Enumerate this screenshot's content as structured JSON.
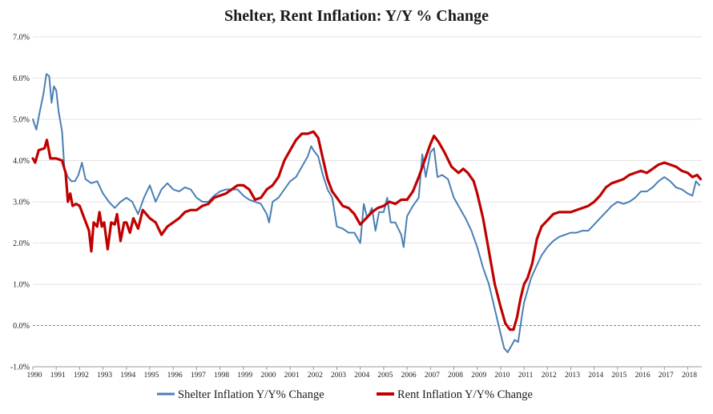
{
  "chart_data": {
    "type": "line",
    "title": "Shelter, Rent Inflation: Y/Y % Change",
    "xlabel": "",
    "ylabel": "",
    "xlim": [
      1990,
      2018.6
    ],
    "ylim": [
      -1.0,
      7.0
    ],
    "y_ticks": [
      7.0,
      6.0,
      5.0,
      4.0,
      3.0,
      2.0,
      1.0,
      0.0,
      -1.0
    ],
    "y_tick_labels": [
      "7.0%",
      "6.0%",
      "5.0%",
      "4.0%",
      "3.0%",
      "2.0%",
      "1.0%",
      "0.0%",
      "-1.0%"
    ],
    "x_ticks": [
      1990,
      1991,
      1992,
      1993,
      1994,
      1995,
      1996,
      1997,
      1998,
      1999,
      2000,
      2001,
      2002,
      2003,
      2004,
      2005,
      2006,
      2007,
      2008,
      2009,
      2010,
      2011,
      2012,
      2013,
      2014,
      2015,
      2016,
      2017,
      2018
    ],
    "x_tick_labels": [
      "1990",
      "1991",
      "1992",
      "1993",
      "1994",
      "1995",
      "1996",
      "1997",
      "1998",
      "1999",
      "2000",
      "2001",
      "2002",
      "2003",
      "2004",
      "2005",
      "2006",
      "2007",
      "2008",
      "2009",
      "2010",
      "2011",
      "2012",
      "2013",
      "2014",
      "2015",
      "2016",
      "2017",
      "2018"
    ],
    "grid": true,
    "zero_line": {
      "value": 0.0,
      "style": "dashed",
      "color": "#c0392b"
    },
    "legend_position": "bottom",
    "series": [
      {
        "name": "Shelter Inflation Y/Y% Change",
        "color": "#4a7fb5",
        "points": [
          [
            1990.0,
            5.0
          ],
          [
            1990.15,
            4.75
          ],
          [
            1990.3,
            5.2
          ],
          [
            1990.45,
            5.6
          ],
          [
            1990.58,
            6.1
          ],
          [
            1990.7,
            6.05
          ],
          [
            1990.8,
            5.4
          ],
          [
            1990.9,
            5.8
          ],
          [
            1991.0,
            5.7
          ],
          [
            1991.1,
            5.2
          ],
          [
            1991.25,
            4.7
          ],
          [
            1991.35,
            3.8
          ],
          [
            1991.5,
            3.6
          ],
          [
            1991.65,
            3.5
          ],
          [
            1991.8,
            3.5
          ],
          [
            1991.95,
            3.65
          ],
          [
            1992.1,
            3.95
          ],
          [
            1992.25,
            3.55
          ],
          [
            1992.5,
            3.45
          ],
          [
            1992.75,
            3.5
          ],
          [
            1993.0,
            3.2
          ],
          [
            1993.25,
            3.0
          ],
          [
            1993.5,
            2.85
          ],
          [
            1993.75,
            3.0
          ],
          [
            1994.0,
            3.1
          ],
          [
            1994.25,
            3.0
          ],
          [
            1994.5,
            2.7
          ],
          [
            1994.75,
            3.1
          ],
          [
            1995.0,
            3.4
          ],
          [
            1995.25,
            3.0
          ],
          [
            1995.5,
            3.3
          ],
          [
            1995.75,
            3.45
          ],
          [
            1996.0,
            3.3
          ],
          [
            1996.25,
            3.25
          ],
          [
            1996.5,
            3.35
          ],
          [
            1996.75,
            3.3
          ],
          [
            1997.0,
            3.1
          ],
          [
            1997.25,
            3.0
          ],
          [
            1997.5,
            3.0
          ],
          [
            1997.75,
            3.15
          ],
          [
            1998.0,
            3.25
          ],
          [
            1998.25,
            3.3
          ],
          [
            1998.5,
            3.3
          ],
          [
            1998.75,
            3.3
          ],
          [
            1999.0,
            3.15
          ],
          [
            1999.25,
            3.05
          ],
          [
            1999.5,
            3.0
          ],
          [
            1999.75,
            2.95
          ],
          [
            2000.0,
            2.7
          ],
          [
            2000.1,
            2.5
          ],
          [
            2000.25,
            3.0
          ],
          [
            2000.5,
            3.1
          ],
          [
            2000.75,
            3.3
          ],
          [
            2001.0,
            3.5
          ],
          [
            2001.25,
            3.6
          ],
          [
            2001.5,
            3.85
          ],
          [
            2001.75,
            4.1
          ],
          [
            2001.9,
            4.35
          ],
          [
            2002.0,
            4.25
          ],
          [
            2002.2,
            4.1
          ],
          [
            2002.4,
            3.65
          ],
          [
            2002.6,
            3.3
          ],
          [
            2002.8,
            3.1
          ],
          [
            2003.0,
            2.4
          ],
          [
            2003.25,
            2.35
          ],
          [
            2003.5,
            2.25
          ],
          [
            2003.75,
            2.25
          ],
          [
            2004.0,
            2.0
          ],
          [
            2004.15,
            2.95
          ],
          [
            2004.3,
            2.6
          ],
          [
            2004.5,
            2.85
          ],
          [
            2004.65,
            2.3
          ],
          [
            2004.8,
            2.75
          ],
          [
            2005.0,
            2.75
          ],
          [
            2005.15,
            3.1
          ],
          [
            2005.3,
            2.5
          ],
          [
            2005.5,
            2.5
          ],
          [
            2005.75,
            2.2
          ],
          [
            2005.85,
            1.9
          ],
          [
            2006.0,
            2.65
          ],
          [
            2006.25,
            2.9
          ],
          [
            2006.5,
            3.1
          ],
          [
            2006.65,
            4.15
          ],
          [
            2006.8,
            3.6
          ],
          [
            2007.0,
            4.2
          ],
          [
            2007.15,
            4.3
          ],
          [
            2007.3,
            3.6
          ],
          [
            2007.5,
            3.65
          ],
          [
            2007.75,
            3.55
          ],
          [
            2008.0,
            3.1
          ],
          [
            2008.25,
            2.85
          ],
          [
            2008.5,
            2.6
          ],
          [
            2008.75,
            2.3
          ],
          [
            2009.0,
            1.9
          ],
          [
            2009.25,
            1.4
          ],
          [
            2009.5,
            1.0
          ],
          [
            2009.75,
            0.4
          ],
          [
            2010.0,
            -0.2
          ],
          [
            2010.15,
            -0.55
          ],
          [
            2010.3,
            -0.65
          ],
          [
            2010.45,
            -0.5
          ],
          [
            2010.6,
            -0.35
          ],
          [
            2010.75,
            -0.4
          ],
          [
            2010.9,
            0.2
          ],
          [
            2011.0,
            0.55
          ],
          [
            2011.15,
            0.85
          ],
          [
            2011.3,
            1.15
          ],
          [
            2011.5,
            1.4
          ],
          [
            2011.75,
            1.7
          ],
          [
            2012.0,
            1.9
          ],
          [
            2012.25,
            2.05
          ],
          [
            2012.5,
            2.15
          ],
          [
            2012.75,
            2.2
          ],
          [
            2013.0,
            2.25
          ],
          [
            2013.25,
            2.25
          ],
          [
            2013.5,
            2.3
          ],
          [
            2013.75,
            2.3
          ],
          [
            2014.0,
            2.45
          ],
          [
            2014.25,
            2.6
          ],
          [
            2014.5,
            2.75
          ],
          [
            2014.75,
            2.9
          ],
          [
            2015.0,
            3.0
          ],
          [
            2015.25,
            2.95
          ],
          [
            2015.5,
            3.0
          ],
          [
            2015.75,
            3.1
          ],
          [
            2016.0,
            3.25
          ],
          [
            2016.25,
            3.25
          ],
          [
            2016.5,
            3.35
          ],
          [
            2016.75,
            3.5
          ],
          [
            2017.0,
            3.6
          ],
          [
            2017.25,
            3.5
          ],
          [
            2017.5,
            3.35
          ],
          [
            2017.75,
            3.3
          ],
          [
            2018.0,
            3.2
          ],
          [
            2018.2,
            3.15
          ],
          [
            2018.35,
            3.5
          ],
          [
            2018.5,
            3.4
          ]
        ]
      },
      {
        "name": "Rent Inflation Y/Y% Change",
        "color": "#c00000",
        "points": [
          [
            1990.0,
            4.05
          ],
          [
            1990.1,
            3.95
          ],
          [
            1990.25,
            4.25
          ],
          [
            1990.5,
            4.3
          ],
          [
            1990.6,
            4.5
          ],
          [
            1990.75,
            4.05
          ],
          [
            1991.0,
            4.05
          ],
          [
            1991.25,
            4.0
          ],
          [
            1991.4,
            3.7
          ],
          [
            1991.5,
            3.0
          ],
          [
            1991.6,
            3.2
          ],
          [
            1991.7,
            2.9
          ],
          [
            1991.85,
            2.95
          ],
          [
            1992.0,
            2.9
          ],
          [
            1992.2,
            2.6
          ],
          [
            1992.4,
            2.3
          ],
          [
            1992.5,
            1.8
          ],
          [
            1992.6,
            2.5
          ],
          [
            1992.75,
            2.4
          ],
          [
            1992.85,
            2.75
          ],
          [
            1992.95,
            2.4
          ],
          [
            1993.05,
            2.5
          ],
          [
            1993.2,
            1.85
          ],
          [
            1993.35,
            2.5
          ],
          [
            1993.5,
            2.45
          ],
          [
            1993.6,
            2.7
          ],
          [
            1993.75,
            2.05
          ],
          [
            1993.9,
            2.5
          ],
          [
            1994.0,
            2.5
          ],
          [
            1994.15,
            2.25
          ],
          [
            1994.3,
            2.6
          ],
          [
            1994.5,
            2.35
          ],
          [
            1994.7,
            2.8
          ],
          [
            1995.0,
            2.6
          ],
          [
            1995.25,
            2.5
          ],
          [
            1995.5,
            2.2
          ],
          [
            1995.75,
            2.4
          ],
          [
            1996.0,
            2.5
          ],
          [
            1996.25,
            2.6
          ],
          [
            1996.5,
            2.75
          ],
          [
            1996.75,
            2.8
          ],
          [
            1997.0,
            2.8
          ],
          [
            1997.25,
            2.9
          ],
          [
            1997.5,
            2.95
          ],
          [
            1997.75,
            3.1
          ],
          [
            1998.0,
            3.15
          ],
          [
            1998.25,
            3.2
          ],
          [
            1998.5,
            3.3
          ],
          [
            1998.75,
            3.4
          ],
          [
            1999.0,
            3.4
          ],
          [
            1999.25,
            3.3
          ],
          [
            1999.5,
            3.05
          ],
          [
            1999.75,
            3.1
          ],
          [
            2000.0,
            3.3
          ],
          [
            2000.25,
            3.4
          ],
          [
            2000.5,
            3.6
          ],
          [
            2000.75,
            4.0
          ],
          [
            2001.0,
            4.25
          ],
          [
            2001.25,
            4.5
          ],
          [
            2001.5,
            4.65
          ],
          [
            2001.75,
            4.65
          ],
          [
            2002.0,
            4.7
          ],
          [
            2002.2,
            4.55
          ],
          [
            2002.4,
            4.05
          ],
          [
            2002.6,
            3.55
          ],
          [
            2002.8,
            3.25
          ],
          [
            2003.0,
            3.1
          ],
          [
            2003.25,
            2.9
          ],
          [
            2003.5,
            2.85
          ],
          [
            2003.75,
            2.7
          ],
          [
            2004.0,
            2.45
          ],
          [
            2004.25,
            2.6
          ],
          [
            2004.5,
            2.75
          ],
          [
            2004.75,
            2.85
          ],
          [
            2005.0,
            2.9
          ],
          [
            2005.25,
            3.0
          ],
          [
            2005.5,
            2.95
          ],
          [
            2005.75,
            3.05
          ],
          [
            2006.0,
            3.05
          ],
          [
            2006.25,
            3.25
          ],
          [
            2006.5,
            3.6
          ],
          [
            2006.75,
            4.0
          ],
          [
            2007.0,
            4.4
          ],
          [
            2007.15,
            4.6
          ],
          [
            2007.35,
            4.45
          ],
          [
            2007.6,
            4.2
          ],
          [
            2007.9,
            3.85
          ],
          [
            2008.2,
            3.7
          ],
          [
            2008.4,
            3.8
          ],
          [
            2008.6,
            3.7
          ],
          [
            2008.85,
            3.5
          ],
          [
            2009.0,
            3.2
          ],
          [
            2009.25,
            2.6
          ],
          [
            2009.5,
            1.8
          ],
          [
            2009.75,
            1.0
          ],
          [
            2010.0,
            0.45
          ],
          [
            2010.2,
            0.05
          ],
          [
            2010.4,
            -0.1
          ],
          [
            2010.55,
            -0.1
          ],
          [
            2010.7,
            0.2
          ],
          [
            2010.85,
            0.65
          ],
          [
            2011.0,
            1.0
          ],
          [
            2011.15,
            1.15
          ],
          [
            2011.35,
            1.5
          ],
          [
            2011.55,
            2.1
          ],
          [
            2011.75,
            2.4
          ],
          [
            2012.0,
            2.55
          ],
          [
            2012.25,
            2.7
          ],
          [
            2012.5,
            2.75
          ],
          [
            2012.75,
            2.75
          ],
          [
            2013.0,
            2.75
          ],
          [
            2013.25,
            2.8
          ],
          [
            2013.5,
            2.85
          ],
          [
            2013.75,
            2.9
          ],
          [
            2014.0,
            3.0
          ],
          [
            2014.25,
            3.15
          ],
          [
            2014.5,
            3.35
          ],
          [
            2014.75,
            3.45
          ],
          [
            2015.0,
            3.5
          ],
          [
            2015.25,
            3.55
          ],
          [
            2015.5,
            3.65
          ],
          [
            2015.75,
            3.7
          ],
          [
            2016.0,
            3.75
          ],
          [
            2016.25,
            3.7
          ],
          [
            2016.5,
            3.8
          ],
          [
            2016.75,
            3.9
          ],
          [
            2017.0,
            3.95
          ],
          [
            2017.25,
            3.9
          ],
          [
            2017.5,
            3.85
          ],
          [
            2017.75,
            3.75
          ],
          [
            2018.0,
            3.7
          ],
          [
            2018.2,
            3.6
          ],
          [
            2018.4,
            3.65
          ],
          [
            2018.55,
            3.55
          ]
        ]
      }
    ]
  }
}
